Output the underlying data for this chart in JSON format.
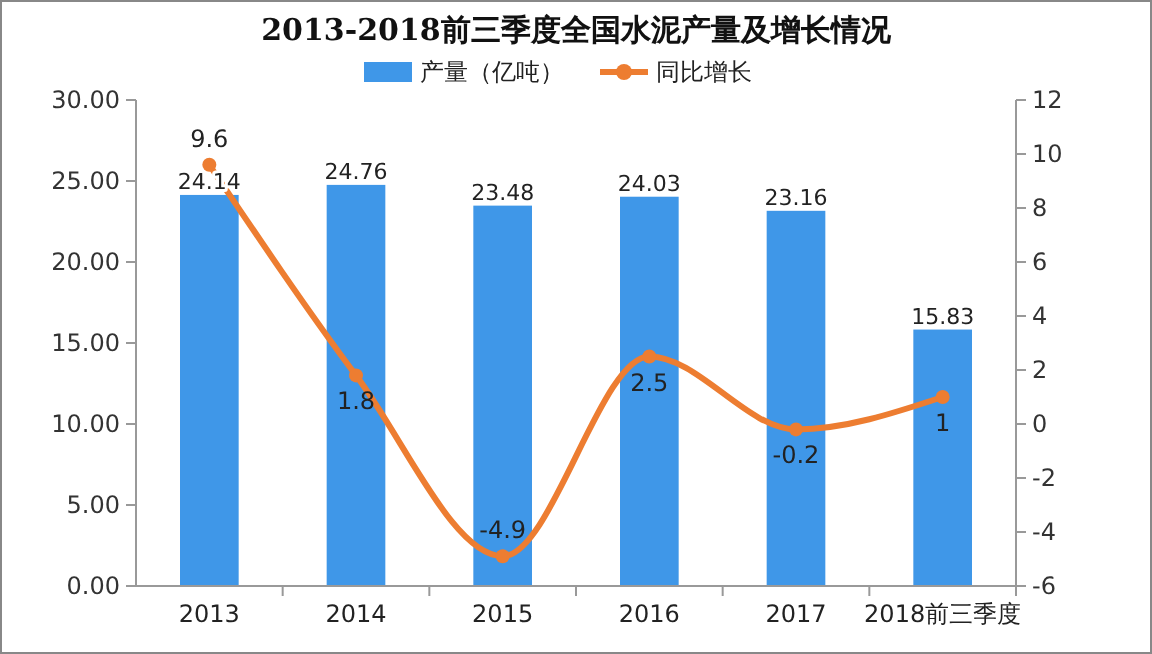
{
  "chart_data": {
    "type": "bar",
    "title": "2013-2018前三季度全国水泥产量及增长情况",
    "categories": [
      "2013",
      "2014",
      "2015",
      "2016",
      "2017",
      "2018前三季度"
    ],
    "series": [
      {
        "name": "产量（亿吨）",
        "color": "#3f97e8",
        "values": [
          24.14,
          24.76,
          23.48,
          24.03,
          23.16,
          15.83
        ]
      },
      {
        "name": "同比增长",
        "type": "line",
        "axis": "y2",
        "color": "#ed7d31",
        "values": [
          9.6,
          1.8,
          -4.9,
          2.5,
          -0.2,
          1
        ]
      }
    ],
    "ylim": [
      0,
      30
    ],
    "yticks": [
      {
        "value": 0,
        "label": "0.00"
      },
      {
        "value": 5,
        "label": "5.00"
      },
      {
        "value": 10,
        "label": "10.00"
      },
      {
        "value": 15,
        "label": "15.00"
      },
      {
        "value": 20,
        "label": "20.00"
      },
      {
        "value": 25,
        "label": "25.00"
      },
      {
        "value": 30,
        "label": "30.00"
      }
    ],
    "y2lim": [
      -6,
      12
    ],
    "y2ticks": [
      -6,
      -4,
      -2,
      0,
      2,
      4,
      6,
      8,
      10,
      12
    ],
    "data_labels": true,
    "legend": "top",
    "grid": false,
    "marker": "circle",
    "line_style": "solid"
  }
}
